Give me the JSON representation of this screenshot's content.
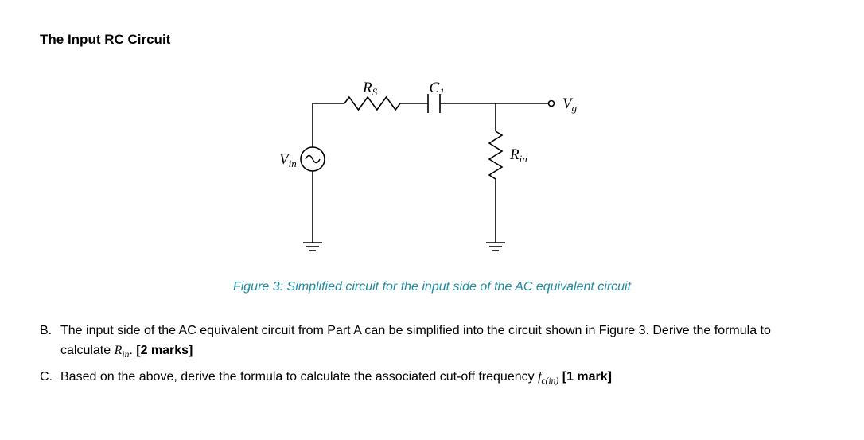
{
  "heading": "The Input RC Circuit",
  "figure": {
    "caption": "Figure 3: Simplified circuit for the input side of the AC equivalent circuit",
    "caption_color": "#1f8ba3",
    "labels": {
      "Rs": "R",
      "Rs_sub": "S",
      "C1": "C",
      "C1_sub": "1",
      "Vg": "V",
      "Vg_sub": "g",
      "Rin": "R",
      "Rin_sub": "in",
      "Vin": "V",
      "Vin_sub": "in"
    },
    "style": {
      "stroke": "#000000",
      "stroke_width": 1.6,
      "font_family": "Cambria Math, Times New Roman, serif",
      "label_fontsize": 19,
      "sub_fontsize": 13,
      "background": "#ffffff"
    }
  },
  "questions": {
    "B": {
      "marker": "B.",
      "text_pre": "The input side of the AC equivalent circuit from Part A can be simplified into the circuit shown in Figure 3. Derive the formula to calculate ",
      "sym": "R",
      "sym_sub": "in",
      "text_post": ". ",
      "marks": "[2 marks]"
    },
    "C": {
      "marker": "C.",
      "text_pre": "Based on the above, derive the formula to calculate the associated cut-off frequency ",
      "sym": "f",
      "sym_sub": "c(in)",
      "text_post": " ",
      "marks": "[1 mark]"
    }
  }
}
